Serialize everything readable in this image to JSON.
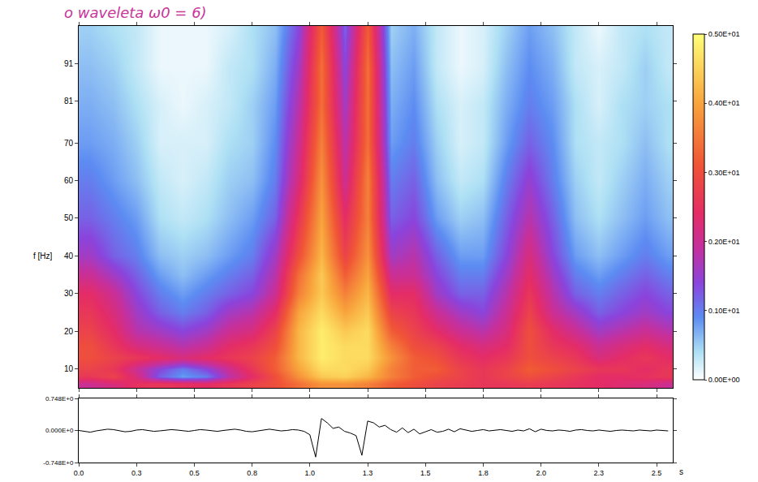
{
  "chart_data": [
    {
      "type": "heatmap",
      "title": "o waveleta ω0 = 6)",
      "ylabel": "f [Hz]",
      "tick_labels": "y",
      "grid": false,
      "xlim": [
        0,
        2.57
      ],
      "xticks": [
        0,
        0.25,
        0.5,
        0.75,
        1.0,
        1.25,
        1.5,
        1.75,
        2.0,
        2.25,
        2.5
      ],
      "ylim": [
        5,
        101
      ],
      "yticks": [
        10,
        20,
        30,
        40,
        50,
        60,
        70,
        81,
        91
      ],
      "x": [
        0.05,
        0.15,
        0.25,
        0.35,
        0.45,
        0.55,
        0.65,
        0.75,
        0.85,
        0.95,
        1.05,
        1.15,
        1.25,
        1.35,
        1.45,
        1.55,
        1.65,
        1.75,
        1.85,
        1.95,
        2.05,
        2.15,
        2.25,
        2.35,
        2.45,
        2.55
      ],
      "y": [
        6,
        8,
        10,
        13,
        16,
        20,
        25,
        30,
        35,
        40,
        50,
        60,
        70,
        80,
        90,
        100
      ],
      "z": [
        [
          2.0,
          2.2,
          2.5,
          2.6,
          2.5,
          2.4,
          2.6,
          2.8,
          3.0,
          3.4,
          3.8,
          3.8,
          3.6,
          3.2,
          3.0,
          2.8,
          2.7,
          2.6,
          2.6,
          2.7,
          2.6,
          2.5,
          2.4,
          2.3,
          2.2,
          2.0
        ],
        [
          2.6,
          2.8,
          2.2,
          1.2,
          0.8,
          1.0,
          1.8,
          2.4,
          3.0,
          3.8,
          4.4,
          4.5,
          4.2,
          3.6,
          3.2,
          3.0,
          2.8,
          2.6,
          2.8,
          3.0,
          2.8,
          2.6,
          2.4,
          2.4,
          2.5,
          2.6
        ],
        [
          2.8,
          2.6,
          2.0,
          1.4,
          1.0,
          1.4,
          2.0,
          2.6,
          3.2,
          4.0,
          4.6,
          4.6,
          4.4,
          3.6,
          3.2,
          3.2,
          2.8,
          2.6,
          2.8,
          3.2,
          3.0,
          2.8,
          2.6,
          2.6,
          2.4,
          2.6
        ],
        [
          3.0,
          2.8,
          2.6,
          2.4,
          2.2,
          2.4,
          2.6,
          2.8,
          3.2,
          4.2,
          4.8,
          4.6,
          4.6,
          3.8,
          3.2,
          3.0,
          2.6,
          2.4,
          2.6,
          3.0,
          2.8,
          2.6,
          2.2,
          2.4,
          2.6,
          2.4
        ],
        [
          3.0,
          2.6,
          2.2,
          2.0,
          1.8,
          2.0,
          2.4,
          2.6,
          3.0,
          4.2,
          4.8,
          4.6,
          4.6,
          3.6,
          3.0,
          2.8,
          2.4,
          2.2,
          2.4,
          3.0,
          2.6,
          2.4,
          2.0,
          2.2,
          2.4,
          2.2
        ],
        [
          2.8,
          2.4,
          1.8,
          1.6,
          1.4,
          1.6,
          2.0,
          2.2,
          2.8,
          4.2,
          4.8,
          4.4,
          4.6,
          3.2,
          2.8,
          2.4,
          2.0,
          1.8,
          2.2,
          3.0,
          2.4,
          2.0,
          1.6,
          1.8,
          2.0,
          1.8
        ],
        [
          2.6,
          2.2,
          1.6,
          1.2,
          1.0,
          1.2,
          1.6,
          1.8,
          2.4,
          4.0,
          4.6,
          4.0,
          4.4,
          2.8,
          2.6,
          2.0,
          1.6,
          1.4,
          2.0,
          2.8,
          2.0,
          1.6,
          1.2,
          1.4,
          1.6,
          1.4
        ],
        [
          2.4,
          2.0,
          1.4,
          1.0,
          0.8,
          1.0,
          1.2,
          1.4,
          2.0,
          3.6,
          4.4,
          3.6,
          4.2,
          2.4,
          2.4,
          1.6,
          1.2,
          1.2,
          1.8,
          2.6,
          1.8,
          1.2,
          1.0,
          1.2,
          1.4,
          1.2
        ],
        [
          2.0,
          1.6,
          1.2,
          0.8,
          0.6,
          0.8,
          1.0,
          1.2,
          1.8,
          3.4,
          4.4,
          3.2,
          4.0,
          2.0,
          2.0,
          1.4,
          1.0,
          1.0,
          1.6,
          2.4,
          1.6,
          1.0,
          0.8,
          1.0,
          1.2,
          1.0
        ],
        [
          1.6,
          1.2,
          1.0,
          0.6,
          0.5,
          0.6,
          0.8,
          1.0,
          1.6,
          3.0,
          4.2,
          2.8,
          3.8,
          1.6,
          1.8,
          1.2,
          0.8,
          0.8,
          1.4,
          2.2,
          1.4,
          0.8,
          0.6,
          0.8,
          1.0,
          0.8
        ],
        [
          1.2,
          1.0,
          0.8,
          0.4,
          0.3,
          0.4,
          0.6,
          0.8,
          1.2,
          2.6,
          4.0,
          2.4,
          3.6,
          1.2,
          1.4,
          0.8,
          0.5,
          0.6,
          1.2,
          1.8,
          1.2,
          0.6,
          0.4,
          0.6,
          0.8,
          0.6
        ],
        [
          1.0,
          0.8,
          0.6,
          0.3,
          0.2,
          0.3,
          0.5,
          0.6,
          1.0,
          2.2,
          3.8,
          2.0,
          3.6,
          1.0,
          1.2,
          0.6,
          0.3,
          0.4,
          1.0,
          1.5,
          1.0,
          0.5,
          0.3,
          0.5,
          0.7,
          0.5
        ],
        [
          0.8,
          0.7,
          0.5,
          0.2,
          0.2,
          0.2,
          0.4,
          0.5,
          0.9,
          2.0,
          3.6,
          1.8,
          3.4,
          0.8,
          1.0,
          0.5,
          0.2,
          0.3,
          0.8,
          1.2,
          0.9,
          0.4,
          0.3,
          0.4,
          0.6,
          0.4
        ],
        [
          0.7,
          0.6,
          0.4,
          0.2,
          0.1,
          0.2,
          0.3,
          0.5,
          0.8,
          1.8,
          3.4,
          1.6,
          3.4,
          0.7,
          0.9,
          0.4,
          0.2,
          0.3,
          0.7,
          1.0,
          0.8,
          0.4,
          0.2,
          0.4,
          0.5,
          0.4
        ],
        [
          0.6,
          0.5,
          0.3,
          0.1,
          0.1,
          0.1,
          0.3,
          0.4,
          0.7,
          1.6,
          3.4,
          1.4,
          3.4,
          0.6,
          0.8,
          0.3,
          0.1,
          0.2,
          0.6,
          0.9,
          0.7,
          0.3,
          0.2,
          0.3,
          0.5,
          0.3
        ],
        [
          0.5,
          0.4,
          0.3,
          0.1,
          0.1,
          0.1,
          0.2,
          0.4,
          0.6,
          1.4,
          3.2,
          1.2,
          3.2,
          0.5,
          0.7,
          0.3,
          0.1,
          0.2,
          0.5,
          0.8,
          0.6,
          0.3,
          0.1,
          0.3,
          0.4,
          0.3
        ]
      ],
      "zlim": [
        0,
        5
      ],
      "zticks": [
        {
          "value": 0,
          "label": "0.00E+00"
        },
        {
          "value": 1,
          "label": "0.10E+01"
        },
        {
          "value": 2,
          "label": "0.20E+01"
        },
        {
          "value": 3,
          "label": "0.30E+01"
        },
        {
          "value": 4,
          "label": "0.40E+01"
        },
        {
          "value": 5,
          "label": "0.50E+01"
        }
      ]
    },
    {
      "type": "line",
      "xlabel": "s",
      "color": "#000000",
      "grid": false,
      "xlim": [
        0,
        2.57
      ],
      "xticks": [
        {
          "value": 0,
          "label": "0.0"
        },
        {
          "value": 0.25,
          "label": "0.3"
        },
        {
          "value": 0.5,
          "label": "0.5"
        },
        {
          "value": 0.75,
          "label": "0.8"
        },
        {
          "value": 1.0,
          "label": "1.0"
        },
        {
          "value": 1.25,
          "label": "1.3"
        },
        {
          "value": 1.5,
          "label": "1.5"
        },
        {
          "value": 1.75,
          "label": "1.8"
        },
        {
          "value": 2.0,
          "label": "2.0"
        },
        {
          "value": 2.25,
          "label": "2.3"
        },
        {
          "value": 2.5,
          "label": "2.5"
        }
      ],
      "ylim": [
        -0.748,
        0.748
      ],
      "yticks": [
        {
          "value": 0.748,
          "label": "0.748E+0"
        },
        {
          "value": 0,
          "label": "0.000E+0"
        },
        {
          "value": -0.748,
          "label": "-0.748E+0"
        }
      ],
      "x": [
        0,
        0.025,
        0.05,
        0.075,
        0.1,
        0.125,
        0.15,
        0.175,
        0.2,
        0.225,
        0.25,
        0.275,
        0.3,
        0.325,
        0.35,
        0.375,
        0.4,
        0.425,
        0.45,
        0.475,
        0.5,
        0.525,
        0.55,
        0.575,
        0.6,
        0.625,
        0.65,
        0.675,
        0.7,
        0.725,
        0.75,
        0.775,
        0.8,
        0.825,
        0.85,
        0.875,
        0.9,
        0.925,
        0.95,
        0.975,
        1.0,
        1.025,
        1.05,
        1.075,
        1.1,
        1.125,
        1.15,
        1.175,
        1.2,
        1.225,
        1.25,
        1.275,
        1.3,
        1.325,
        1.35,
        1.375,
        1.4,
        1.425,
        1.45,
        1.475,
        1.5,
        1.525,
        1.55,
        1.575,
        1.6,
        1.625,
        1.65,
        1.675,
        1.7,
        1.725,
        1.75,
        1.775,
        1.8,
        1.825,
        1.85,
        1.875,
        1.9,
        1.925,
        1.95,
        1.975,
        2.0,
        2.025,
        2.05,
        2.075,
        2.1,
        2.125,
        2.15,
        2.175,
        2.2,
        2.225,
        2.25,
        2.275,
        2.3,
        2.325,
        2.35,
        2.375,
        2.4,
        2.425,
        2.45,
        2.475,
        2.5,
        2.525,
        2.55
      ],
      "values": [
        0,
        -0.02,
        -0.04,
        -0.01,
        0.01,
        0.03,
        0.02,
        -0.01,
        -0.03,
        -0.02,
        0.01,
        0.02,
        0,
        -0.02,
        -0.01,
        0.01,
        0.02,
        0.01,
        -0.01,
        -0.02,
        0,
        0.02,
        0.01,
        -0.01,
        -0.02,
        0,
        0.02,
        0.03,
        0.01,
        -0.02,
        -0.03,
        -0.01,
        0.02,
        0.03,
        0.01,
        -0.01,
        0,
        0.02,
        0.01,
        -0.02,
        -0.1,
        -0.62,
        0.28,
        0.18,
        0.05,
        0.08,
        -0.02,
        -0.06,
        -0.12,
        -0.58,
        0.22,
        0.18,
        0.08,
        0.12,
        0.02,
        -0.04,
        0.06,
        -0.05,
        0.03,
        -0.08,
        -0.03,
        0.02,
        -0.04,
        -0.02,
        0.03,
        -0.03,
        0.04,
        0.01,
        -0.02,
        0,
        0.02,
        -0.01,
        0.01,
        0.02,
        0,
        -0.02,
        0.01,
        -0.01,
        0.04,
        -0.03,
        0.03,
        0,
        -0.01,
        0.01,
        0,
        -0.02,
        0.01,
        0.02,
        0,
        -0.01,
        0.01,
        0,
        -0.02,
        0,
        0.01,
        0,
        -0.01,
        0.01,
        0,
        -0.01,
        0.01,
        0,
        -0.01
      ]
    }
  ]
}
